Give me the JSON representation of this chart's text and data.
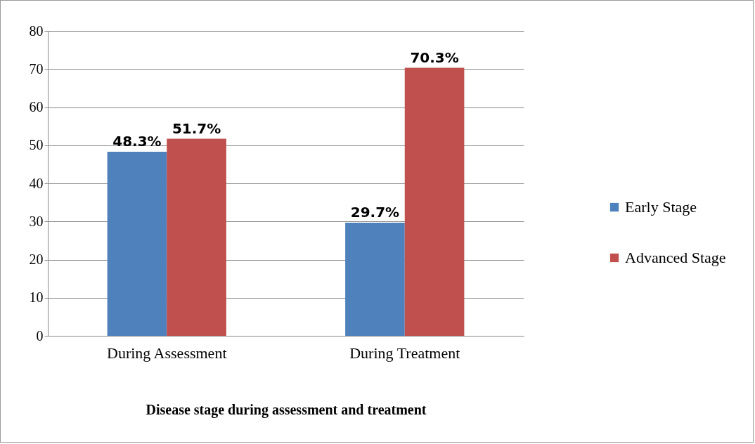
{
  "chart_data": {
    "type": "bar",
    "xlabel": "Disease stage during assessment and treatment",
    "categories": [
      "During Assessment",
      "During Treatment"
    ],
    "series": [
      {
        "name": "Early Stage",
        "color": "#4f81bd",
        "values": [
          48.3,
          29.7
        ],
        "value_labels": [
          "48.3%",
          "29.7%"
        ]
      },
      {
        "name": "Advanced Stage",
        "color": "#c0504d",
        "values": [
          51.7,
          70.3
        ],
        "value_labels": [
          "51.7%",
          "70.3%"
        ]
      }
    ],
    "ylim": [
      0,
      80
    ],
    "yticks": [
      0,
      10,
      20,
      30,
      40,
      50,
      60,
      70,
      80
    ],
    "grid": "y",
    "legend": "right"
  }
}
